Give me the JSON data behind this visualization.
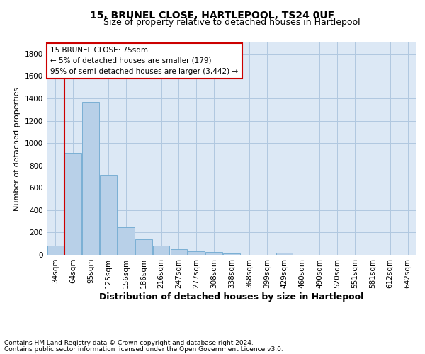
{
  "title": "15, BRUNEL CLOSE, HARTLEPOOL, TS24 0UF",
  "subtitle": "Size of property relative to detached houses in Hartlepool",
  "xlabel": "Distribution of detached houses by size in Hartlepool",
  "ylabel": "Number of detached properties",
  "categories": [
    "34sqm",
    "64sqm",
    "95sqm",
    "125sqm",
    "156sqm",
    "186sqm",
    "216sqm",
    "247sqm",
    "277sqm",
    "308sqm",
    "338sqm",
    "368sqm",
    "399sqm",
    "429sqm",
    "460sqm",
    "490sqm",
    "520sqm",
    "551sqm",
    "581sqm",
    "612sqm",
    "642sqm"
  ],
  "values": [
    85,
    910,
    1370,
    715,
    250,
    140,
    85,
    50,
    30,
    25,
    15,
    0,
    0,
    20,
    0,
    0,
    0,
    0,
    0,
    0,
    0
  ],
  "bar_color": "#b8d0e8",
  "bar_edge_color": "#7aafd4",
  "marker_line_color": "#cc0000",
  "annotation_line1": "15 BRUNEL CLOSE: 75sqm",
  "annotation_line2": "← 5% of detached houses are smaller (179)",
  "annotation_line3": "95% of semi-detached houses are larger (3,442) →",
  "annotation_box_edgecolor": "#cc0000",
  "footer_line1": "Contains HM Land Registry data © Crown copyright and database right 2024.",
  "footer_line2": "Contains public sector information licensed under the Open Government Licence v3.0.",
  "ylim": [
    0,
    1900
  ],
  "yticks": [
    0,
    200,
    400,
    600,
    800,
    1000,
    1200,
    1400,
    1600,
    1800
  ],
  "plot_bg_color": "#dce8f5",
  "fig_bg_color": "#ffffff",
  "grid_color": "#b0c8e0",
  "title_fontsize": 10,
  "subtitle_fontsize": 9,
  "xlabel_fontsize": 9,
  "ylabel_fontsize": 8,
  "tick_fontsize": 7.5,
  "annotation_fontsize": 7.5,
  "footer_fontsize": 6.5
}
